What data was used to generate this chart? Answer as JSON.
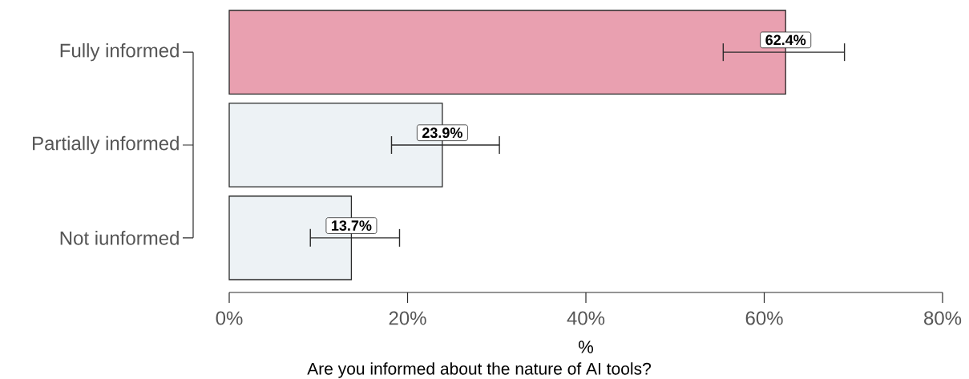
{
  "chart_data": {
    "type": "bar",
    "orientation": "horizontal",
    "xlabel": "%",
    "annotations": [
      "Are you informed about the nature of AI tools?"
    ],
    "categories": [
      "Fully informed",
      "Partially informed",
      "Not iunformed"
    ],
    "values": [
      62.4,
      23.9,
      13.7
    ],
    "colors": [
      "#e9a0b0",
      "#edf2f5",
      "#edf2f5"
    ],
    "errors": [
      [
        55.4,
        69.0
      ],
      [
        18.2,
        30.3
      ],
      [
        9.1,
        19.1
      ]
    ],
    "value_labels": [
      "62.4%",
      "23.9%",
      "13.7%"
    ],
    "xlim": [
      0,
      80
    ],
    "xticks": [
      {
        "value": 0,
        "label": "0%"
      },
      {
        "value": 20,
        "label": "20%"
      },
      {
        "value": 40,
        "label": "40%"
      },
      {
        "value": 60,
        "label": "60%"
      },
      {
        "value": 80,
        "label": "80%"
      }
    ]
  }
}
